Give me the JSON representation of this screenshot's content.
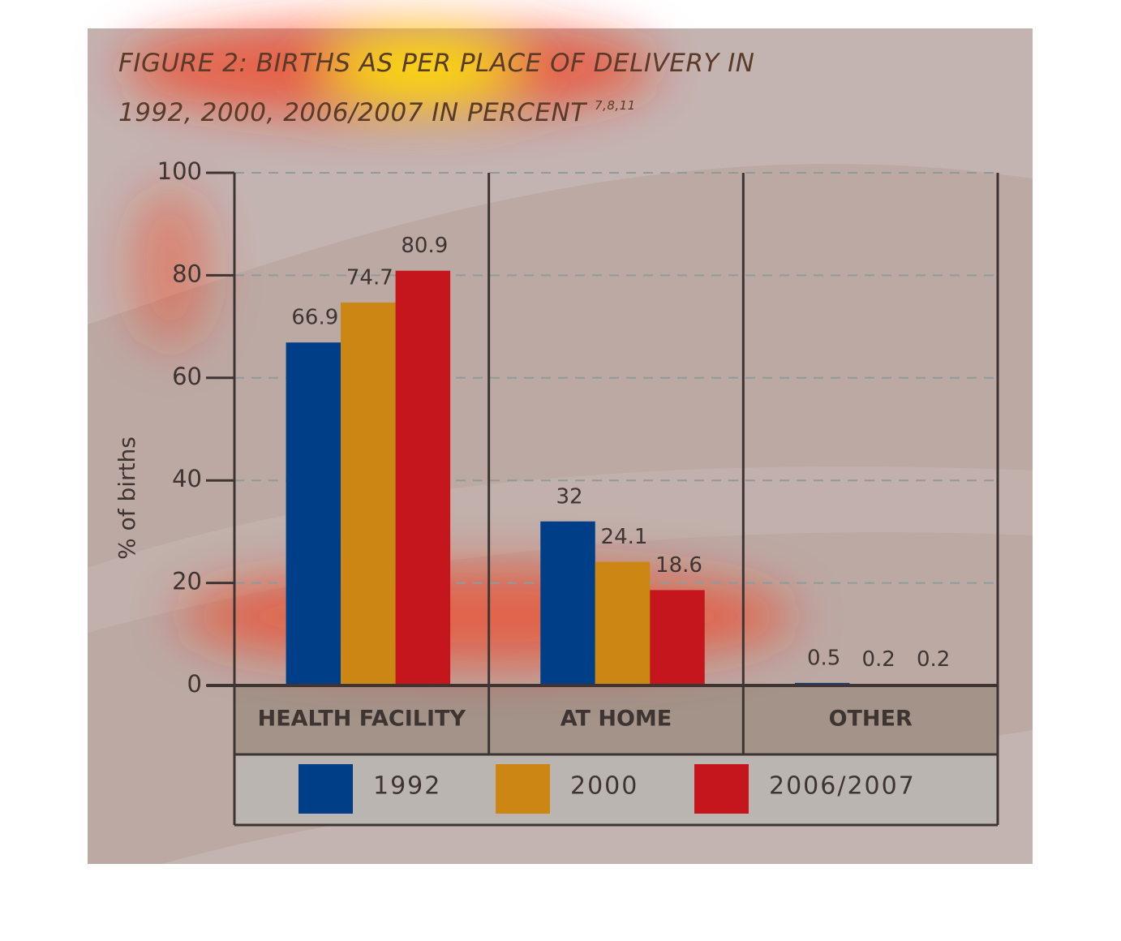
{
  "chart_data": {
    "type": "bar",
    "title": "FIGURE 2: BIRTHS AS PER PLACE OF DELIVERY IN 1992, 2000, 2006/2007 IN PERCENT",
    "title_superscript": "7,8,11",
    "y_label": "% of births",
    "categories": [
      "HEALTH FACILITY",
      "AT HOME",
      "OTHER"
    ],
    "series": [
      {
        "name": "1992",
        "color": "#003f87",
        "values": [
          66.9,
          32,
          0.5
        ]
      },
      {
        "name": "2000",
        "color": "#cc8614",
        "values": [
          74.7,
          24.1,
          0.2
        ]
      },
      {
        "name": "2006/2007",
        "color": "#c4161c",
        "values": [
          80.9,
          18.6,
          0.2
        ]
      }
    ],
    "ylim": [
      0,
      100
    ],
    "yticks": [
      0,
      20,
      40,
      60,
      80,
      100
    ],
    "grid": true
  }
}
